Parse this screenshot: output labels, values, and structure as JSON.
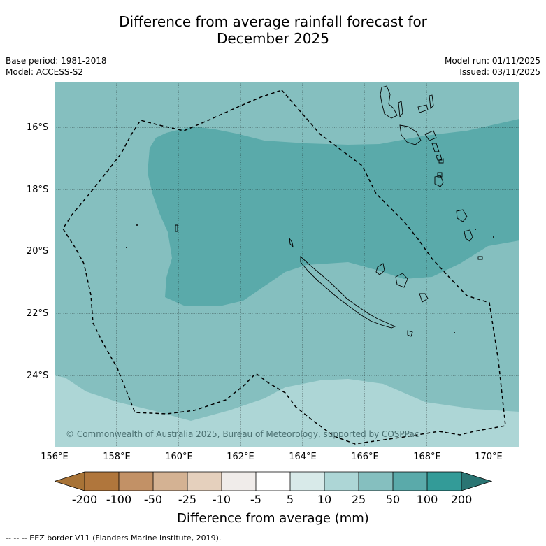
{
  "title_line1": "Difference from average rainfall forecast for",
  "title_line2": "December 2025",
  "meta_left": {
    "base_period": "Base period: 1981-2018",
    "model": "Model: ACCESS-S2"
  },
  "meta_right": {
    "model_run": "Model run: 01/11/2025",
    "issued": "Issued: 03/11/2025"
  },
  "map": {
    "x_ticks": [
      "156°E",
      "158°E",
      "160°E",
      "162°E",
      "164°E",
      "166°E",
      "168°E",
      "170°E"
    ],
    "y_ticks": [
      "16°S",
      "18°S",
      "20°S",
      "22°S",
      "24°S"
    ],
    "copyright": "© Commonwealth of Australia 2025, Bureau of Meteorology, supported by COSPPac",
    "colors": {
      "band_10_25": "#add6d6",
      "band_25_50": "#85bfbf",
      "band_50_100": "#5aaaaa"
    }
  },
  "colorbar": {
    "labels": [
      "-200",
      "-100",
      "-50",
      "-25",
      "-10",
      "-5",
      "5",
      "10",
      "25",
      "50",
      "100",
      "200"
    ],
    "colors": [
      "#a87336",
      "#b0763c",
      "#c29166",
      "#d4b293",
      "#e5d0bd",
      "#f0ecea",
      "#ffffff",
      "#d8eae9",
      "#add6d6",
      "#85bfbf",
      "#5aaaaa",
      "#339b98",
      "#2a7573"
    ],
    "title": "Difference from average (mm)"
  },
  "footer": "--  --  -- EEZ border V11 (Flanders Marine Institute, 2019)."
}
